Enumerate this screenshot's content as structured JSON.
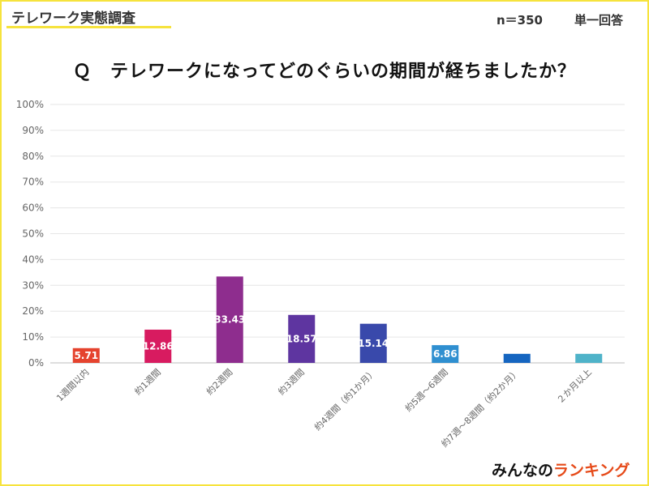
{
  "header": {
    "survey_title": "テレワーク実態調査",
    "sample": "n＝350",
    "answer_type": "単一回答"
  },
  "question": "Ｑ　テレワークになってどのぐらいの期間が経ちましたか？",
  "logo": {
    "part1": "みんなの",
    "part2": "ランキング"
  },
  "chart_data": {
    "type": "bar",
    "title": "Ｑ　テレワークになってどのぐらいの期間が経ちましたか？",
    "xlabel": "",
    "ylabel": "",
    "ylim": [
      0,
      100
    ],
    "yticks": [
      "0%",
      "10%",
      "20%",
      "30%",
      "40%",
      "50%",
      "60%",
      "70%",
      "80%",
      "90%",
      "100%"
    ],
    "grid": true,
    "categories": [
      "1週間以内",
      "約1週間",
      "約2週間",
      "約3週間",
      "約4週間（約1か月）",
      "約5週～6週間",
      "約7週～8週間（約2か月）",
      "２か月以上"
    ],
    "values": [
      5.71,
      12.86,
      33.43,
      18.57,
      15.14,
      6.86,
      3.5,
      3.5
    ],
    "data_labels": [
      "5.71",
      "12.86",
      "33.43",
      "18.57",
      "15.14",
      "6.86",
      "",
      ""
    ],
    "colors": [
      "#e5432e",
      "#d81b60",
      "#8e2d8e",
      "#5e35a0",
      "#3949ab",
      "#2f8fd0",
      "#1565c0",
      "#4fb3c9"
    ]
  }
}
